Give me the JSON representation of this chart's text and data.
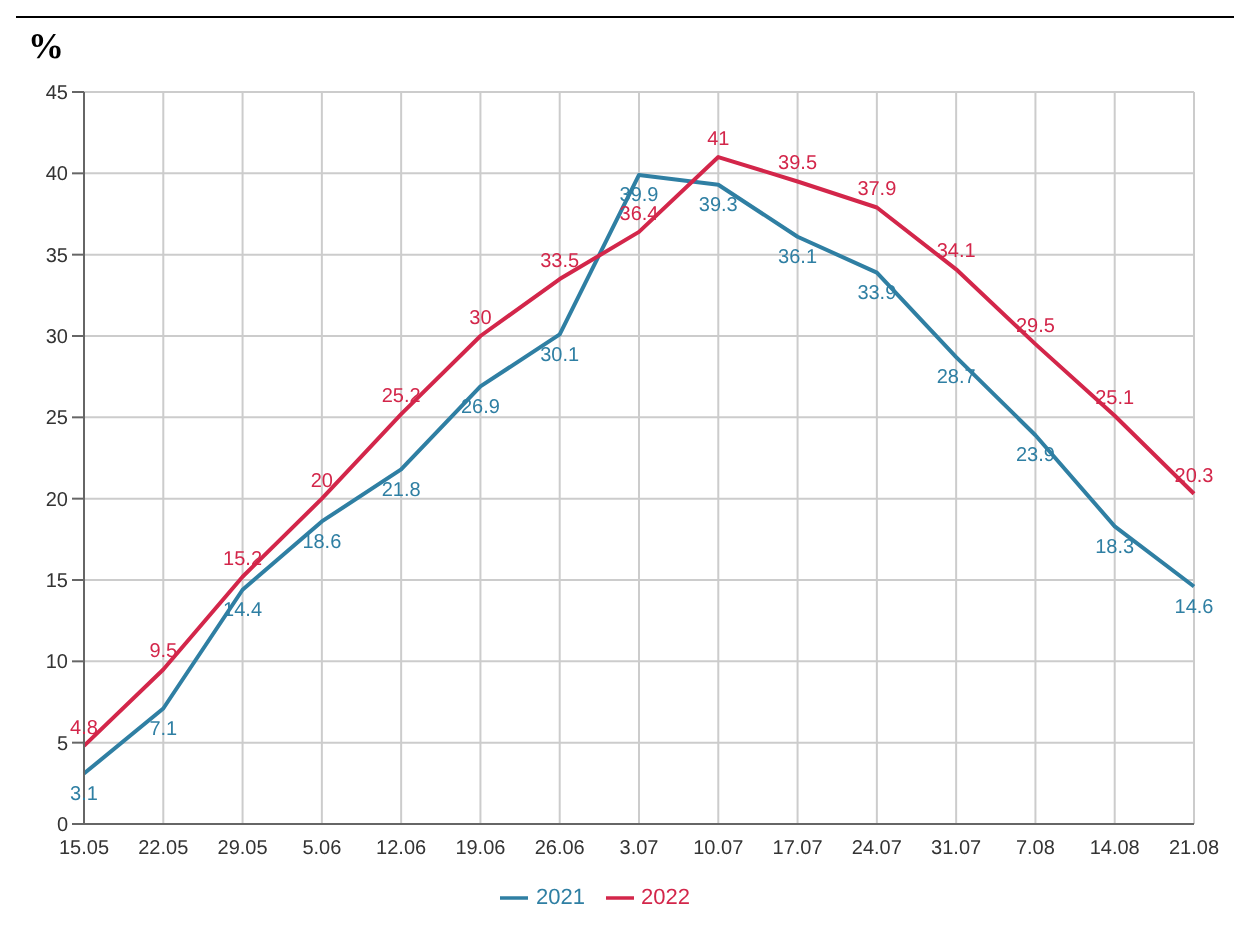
{
  "chart_data": {
    "type": "line",
    "title": "%",
    "categories": [
      "15.05",
      "22.05",
      "29.05",
      "5.06",
      "12.06",
      "19.06",
      "26.06",
      "3.07",
      "10.07",
      "17.07",
      "24.07",
      "31.07",
      "7.08",
      "14.08",
      "21.08"
    ],
    "series": [
      {
        "name": "2021",
        "color": "#2f7fa3",
        "values": [
          3.1,
          7.1,
          14.4,
          18.6,
          21.8,
          26.9,
          30.1,
          39.9,
          39.3,
          36.1,
          33.9,
          28.7,
          23.9,
          18.3,
          14.6
        ]
      },
      {
        "name": "2022",
        "color": "#d3264a",
        "values": [
          4.8,
          9.5,
          15.2,
          20,
          25.2,
          30,
          33.5,
          36.4,
          41,
          39.5,
          37.9,
          34.1,
          29.5,
          25.1,
          20.3
        ]
      }
    ],
    "ylim": [
      0,
      45
    ],
    "yticks": [
      0,
      5,
      10,
      15,
      20,
      25,
      30,
      35,
      40,
      45
    ],
    "grid": true,
    "legend": "bottom",
    "data_labels": true,
    "marker": "none",
    "line_style": "solid"
  }
}
